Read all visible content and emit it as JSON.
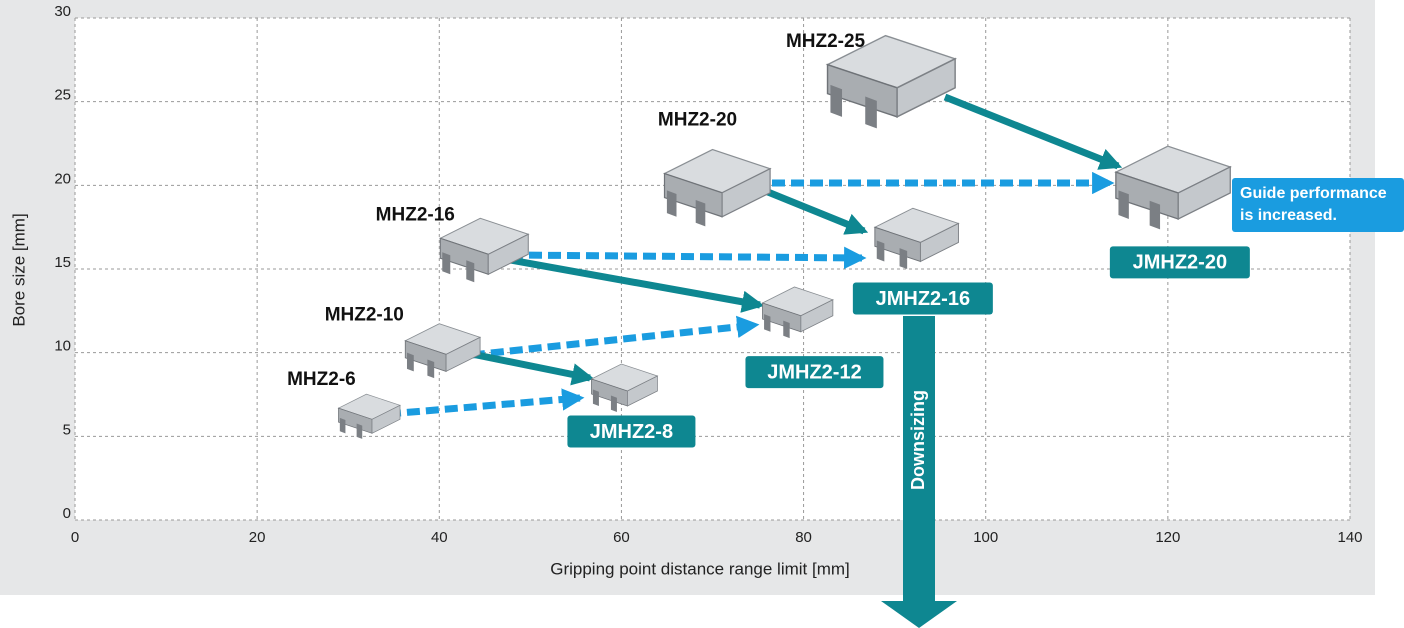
{
  "chart_data": {
    "type": "scatter",
    "xlabel": "Gripping point distance range limit [mm]",
    "ylabel": "Bore size [mm]",
    "xlim": [
      0,
      140
    ],
    "xticks": [
      0,
      20,
      40,
      60,
      80,
      100,
      120,
      140
    ],
    "ylim": [
      0,
      30
    ],
    "yticks": [
      0,
      5,
      10,
      15,
      20,
      25,
      30
    ],
    "grid": true,
    "points": [
      {
        "label": "MHZ2-6",
        "x": 32,
        "y": 6.1
      },
      {
        "label": "MHZ2-10",
        "x": 40,
        "y": 10
      },
      {
        "label": "MHZ2-16",
        "x": 44.5,
        "y": 16
      },
      {
        "label": "MHZ2-20",
        "x": 70,
        "y": 19.7
      },
      {
        "label": "MHZ2-25",
        "x": 89,
        "y": 26
      },
      {
        "label": "JMHZ2-8",
        "x": 60,
        "y": 7.8
      },
      {
        "label": "JMHZ2-12",
        "x": 79,
        "y": 12.3
      },
      {
        "label": "JMHZ2-16",
        "x": 92,
        "y": 16.7
      },
      {
        "label": "JMHZ2-20",
        "x": 120,
        "y": 19.7
      }
    ],
    "annotations": [
      "Guide performance",
      "is increased.",
      "Downsizing"
    ]
  }
}
